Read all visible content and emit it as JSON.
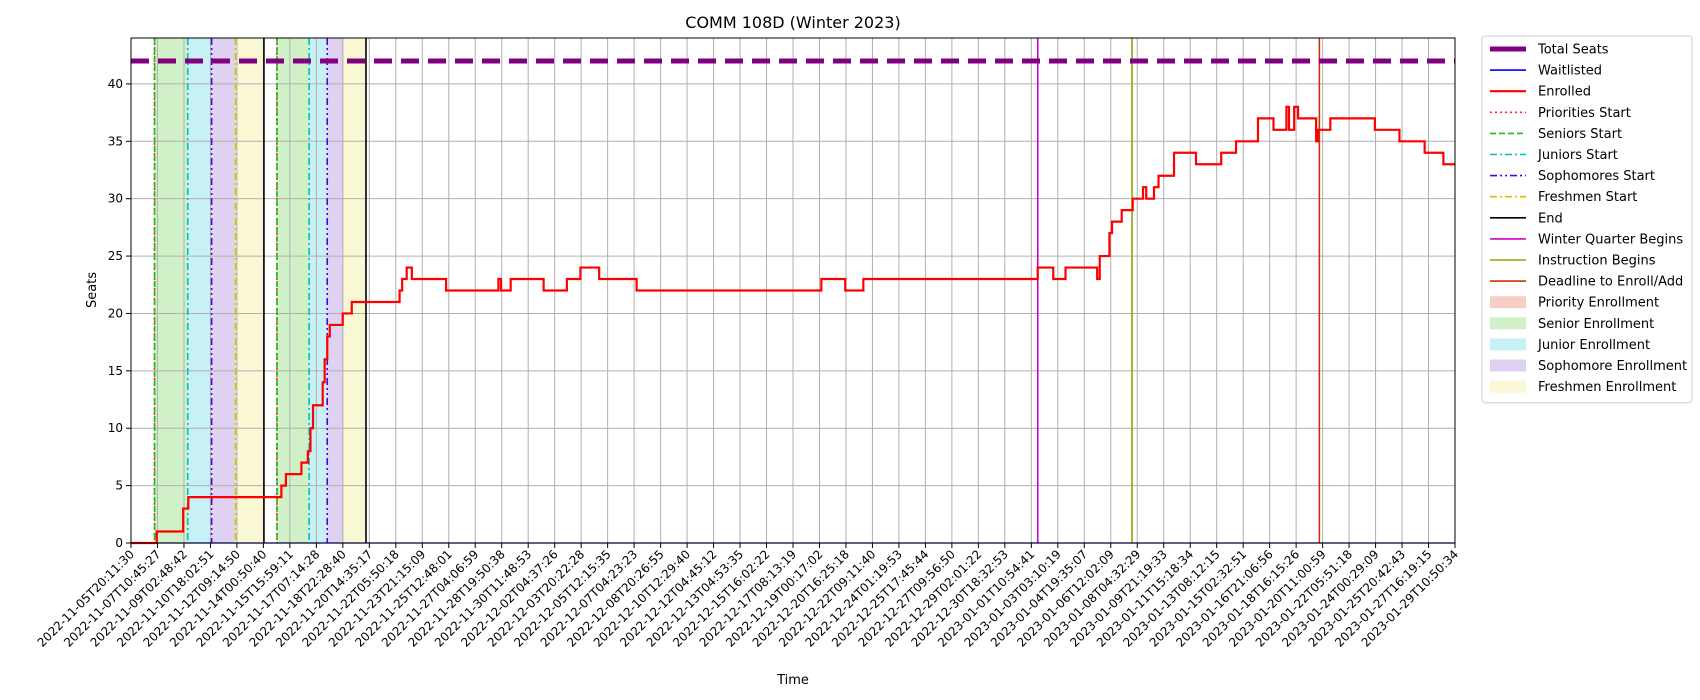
{
  "chart_data": {
    "type": "line",
    "title": "COMM 108D (Winter 2023)",
    "xlabel": "Time",
    "ylabel": "Seats",
    "ylim": [
      0,
      44
    ],
    "yticks": [
      0,
      5,
      10,
      15,
      20,
      25,
      30,
      35,
      40
    ],
    "grid": true,
    "legend_position": "outside-right",
    "x_start": "2022-11-05T20:11:30",
    "x_end": "2023-01-30T06:00:00",
    "xtick_labels": [
      "2022-11-05T20:11:30",
      "2022-11-07T10:45:27",
      "2022-11-09T02:48:42",
      "2022-11-10T18:02:51",
      "2022-11-12T09:14:50",
      "2022-11-14T00:50:40",
      "2022-11-15T15:59:11",
      "2022-11-17T07:14:28",
      "2022-11-18T22:28:40",
      "2022-11-20T14:35:17",
      "2022-11-22T05:50:18",
      "2022-11-23T21:15:09",
      "2022-11-25T12:48:01",
      "2022-11-27T04:06:59",
      "2022-11-28T19:50:38",
      "2022-11-30T11:48:53",
      "2022-12-02T04:37:26",
      "2022-12-03T20:22:28",
      "2022-12-05T12:15:35",
      "2022-12-07T04:23:23",
      "2022-12-08T20:26:55",
      "2022-12-10T12:29:40",
      "2022-12-12T04:45:12",
      "2022-12-13T04:53:35",
      "2022-12-15T16:02:22",
      "2022-12-17T08:13:19",
      "2022-12-19T00:17:02",
      "2022-12-20T16:25:18",
      "2022-12-22T09:11:40",
      "2022-12-24T01:19:53",
      "2022-12-25T17:45:44",
      "2022-12-27T09:56:50",
      "2022-12-29T02:01:22",
      "2022-12-30T18:32:53",
      "2023-01-01T10:54:41",
      "2023-01-03T03:10:19",
      "2023-01-04T19:35:07",
      "2023-01-06T12:02:09",
      "2023-01-08T04:32:29",
      "2023-01-09T21:19:33",
      "2023-01-11T15:18:34",
      "2023-01-13T08:12:15",
      "2023-01-15T02:32:51",
      "2023-01-16T21:06:56",
      "2023-01-18T16:15:26",
      "2023-01-20T11:00:59",
      "2023-01-22T05:51:18",
      "2023-01-24T00:29:09",
      "2023-01-25T20:42:43",
      "2023-01-27T16:19:15",
      "2023-01-29T10:50:34"
    ],
    "series": [
      {
        "name": "Total Seats",
        "color": "#800080",
        "style": "thick-dashed",
        "points": [
          [
            "2022-11-05T20:11:30",
            42
          ],
          [
            "2023-01-30T06:00:00",
            42
          ]
        ]
      },
      {
        "name": "Waitlisted",
        "color": "#0000ff",
        "style": "solid-thin",
        "points": [
          [
            "2022-11-05T20:11:30",
            0
          ],
          [
            "2023-01-30T06:00:00",
            0
          ]
        ]
      },
      {
        "name": "Enrolled",
        "color": "#ff0000",
        "style": "step",
        "points": [
          [
            "2022-11-05T20:11:30",
            0
          ],
          [
            "2022-11-07T12:00:00",
            1
          ],
          [
            "2022-11-09T05:00:00",
            3
          ],
          [
            "2022-11-09T13:00:00",
            4
          ],
          [
            "2022-11-15T13:00:00",
            5
          ],
          [
            "2022-11-15T20:00:00",
            6
          ],
          [
            "2022-11-16T20:00:00",
            7
          ],
          [
            "2022-11-17T06:00:00",
            8
          ],
          [
            "2022-11-17T10:00:00",
            10
          ],
          [
            "2022-11-17T14:00:00",
            12
          ],
          [
            "2022-11-18T05:00:00",
            14
          ],
          [
            "2022-11-18T08:00:00",
            16
          ],
          [
            "2022-11-18T12:00:00",
            18
          ],
          [
            "2022-11-18T16:00:00",
            19
          ],
          [
            "2022-11-19T12:00:00",
            20
          ],
          [
            "2022-11-20T02:00:00",
            21
          ],
          [
            "2022-11-23T04:00:00",
            22
          ],
          [
            "2022-11-23T08:00:00",
            23
          ],
          [
            "2022-11-23T15:00:00",
            24
          ],
          [
            "2022-11-23T23:00:00",
            23
          ],
          [
            "2022-11-26T04:00:00",
            22
          ],
          [
            "2022-11-29T13:00:00",
            23
          ],
          [
            "2022-11-29T17:00:00",
            22
          ],
          [
            "2022-11-30T08:00:00",
            23
          ],
          [
            "2022-12-02T11:00:00",
            22
          ],
          [
            "2022-12-03T23:00:00",
            23
          ],
          [
            "2022-12-04T20:00:00",
            24
          ],
          [
            "2022-12-06T01:00:00",
            23
          ],
          [
            "2022-12-08T11:00:00",
            22
          ],
          [
            "2022-12-20T09:00:00",
            23
          ],
          [
            "2022-12-21T22:00:00",
            22
          ],
          [
            "2022-12-23T02:00:00",
            23
          ],
          [
            "2023-01-03T08:00:00",
            24
          ],
          [
            "2023-01-04T08:00:00",
            23
          ],
          [
            "2023-01-05T03:00:00",
            24
          ],
          [
            "2023-01-07T04:00:00",
            23
          ],
          [
            "2023-01-07T08:00:00",
            25
          ],
          [
            "2023-01-07T23:00:00",
            27
          ],
          [
            "2023-01-08T03:00:00",
            28
          ],
          [
            "2023-01-08T18:00:00",
            29
          ],
          [
            "2023-01-09T11:00:00",
            30
          ],
          [
            "2023-01-10T03:00:00",
            31
          ],
          [
            "2023-01-10T08:00:00",
            30
          ],
          [
            "2023-01-10T20:00:00",
            31
          ],
          [
            "2023-01-11T03:00:00",
            32
          ],
          [
            "2023-01-12T03:00:00",
            34
          ],
          [
            "2023-01-13T13:00:00",
            33
          ],
          [
            "2023-01-15T04:00:00",
            34
          ],
          [
            "2023-01-16T03:00:00",
            35
          ],
          [
            "2023-01-17T13:00:00",
            37
          ],
          [
            "2023-01-18T13:00:00",
            36
          ],
          [
            "2023-01-19T09:00:00",
            38
          ],
          [
            "2023-01-19T13:00:00",
            36
          ],
          [
            "2023-01-19T21:00:00",
            38
          ],
          [
            "2023-01-20T03:00:00",
            37
          ],
          [
            "2023-01-21T07:00:00",
            35
          ],
          [
            "2023-01-21T10:00:00",
            36
          ],
          [
            "2023-01-22T05:00:00",
            37
          ],
          [
            "2023-01-25T02:00:00",
            36
          ],
          [
            "2023-01-26T16:00:00",
            35
          ],
          [
            "2023-01-28T07:00:00",
            34
          ],
          [
            "2023-01-29T12:00:00",
            33
          ],
          [
            "2023-01-30T06:00:00",
            33
          ]
        ]
      }
    ],
    "vertical_markers": [
      {
        "label": "Priorities Start",
        "time": "2022-11-07T08:30:00",
        "color": "#ff2a2a",
        "dash": "dotted"
      },
      {
        "label": "Seniors Start",
        "time": "2022-11-07T08:45:00",
        "color": "#22bb22",
        "dash": "dashed"
      },
      {
        "label": "Juniors Start",
        "time": "2022-11-09T12:00:00",
        "color": "#00bfbf",
        "dash": "dashdot"
      },
      {
        "label": "Sophomores Start",
        "time": "2022-11-11T01:00:00",
        "color": "#5500dd",
        "dash": "dashdotdot"
      },
      {
        "label": "Freshmen Start",
        "time": "2022-11-12T14:00:00",
        "color": "#e0c000",
        "dash": "dashdot"
      },
      {
        "label": "End",
        "time": "2022-11-14T10:00:00",
        "color": "#000000",
        "dash": "solid"
      },
      {
        "label": "Priorities Start",
        "time": "2022-11-15T06:00:00",
        "color": "#ff2a2a",
        "dash": "dotted"
      },
      {
        "label": "Seniors Start",
        "time": "2022-11-15T06:15:00",
        "color": "#22bb22",
        "dash": "dashed"
      },
      {
        "label": "Juniors Start",
        "time": "2022-11-17T08:00:00",
        "color": "#00bfbf",
        "dash": "dashdot"
      },
      {
        "label": "Sophomores Start",
        "time": "2022-11-18T12:00:00",
        "color": "#5500dd",
        "dash": "dashdotdot"
      },
      {
        "label": "End",
        "time": "2022-11-21T00:00:00",
        "color": "#000000",
        "dash": "solid"
      },
      {
        "label": "Winter Quarter Begins",
        "time": "2023-01-03T08:00:00",
        "color": "#cc00cc",
        "dash": "solid"
      },
      {
        "label": "Instruction Begins",
        "time": "2023-01-09T10:00:00",
        "color": "#88aa00",
        "dash": "solid"
      },
      {
        "label": "Deadline to Enroll/Add",
        "time": "2023-01-21T12:00:00",
        "color": "#cc3300",
        "dash": "solid"
      }
    ],
    "shaded_periods": [
      {
        "label": "Priority Enrollment",
        "start": "2022-11-07T08:30:00",
        "end": "2022-11-07T08:45:00",
        "color": "#f4c6b8"
      },
      {
        "label": "Senior Enrollment",
        "start": "2022-11-07T08:45:00",
        "end": "2022-11-09T12:00:00",
        "color": "#c8efbe"
      },
      {
        "label": "Junior Enrollment",
        "start": "2022-11-09T12:00:00",
        "end": "2022-11-11T01:00:00",
        "color": "#bdeef2"
      },
      {
        "label": "Sophomore Enrollment",
        "start": "2022-11-11T01:00:00",
        "end": "2022-11-12T14:00:00",
        "color": "#d9c9f0"
      },
      {
        "label": "Freshmen Enrollment",
        "start": "2022-11-12T14:00:00",
        "end": "2022-11-14T10:00:00",
        "color": "#f8f6cc"
      },
      {
        "label": "Priority Enrollment",
        "start": "2022-11-15T06:00:00",
        "end": "2022-11-15T06:15:00",
        "color": "#f4c6b8"
      },
      {
        "label": "Senior Enrollment",
        "start": "2022-11-15T06:15:00",
        "end": "2022-11-17T08:00:00",
        "color": "#c8efbe"
      },
      {
        "label": "Junior Enrollment",
        "start": "2022-11-17T08:00:00",
        "end": "2022-11-18T12:00:00",
        "color": "#bdeef2"
      },
      {
        "label": "Sophomore Enrollment",
        "start": "2022-11-18T12:00:00",
        "end": "2022-11-19T13:00:00",
        "color": "#d9c9f0"
      },
      {
        "label": "Freshmen Enrollment",
        "start": "2022-11-19T13:00:00",
        "end": "2022-11-21T00:00:00",
        "color": "#f8f6cc"
      }
    ],
    "legend": [
      {
        "label": "Total Seats",
        "kind": "line",
        "color": "#800080",
        "dash": "thick"
      },
      {
        "label": "Waitlisted",
        "kind": "line",
        "color": "#0000ff",
        "dash": "solid"
      },
      {
        "label": "Enrolled",
        "kind": "line",
        "color": "#ff0000",
        "dash": "solid-bold"
      },
      {
        "label": "Priorities Start",
        "kind": "line",
        "color": "#ff2a2a",
        "dash": "dotted"
      },
      {
        "label": "Seniors Start",
        "kind": "line",
        "color": "#22bb22",
        "dash": "dashed"
      },
      {
        "label": "Juniors Start",
        "kind": "line",
        "color": "#00bfbf",
        "dash": "dashdot"
      },
      {
        "label": "Sophomores Start",
        "kind": "line",
        "color": "#5500dd",
        "dash": "dashdotdot"
      },
      {
        "label": "Freshmen Start",
        "kind": "line",
        "color": "#e0c000",
        "dash": "dashdot"
      },
      {
        "label": "End",
        "kind": "line",
        "color": "#000000",
        "dash": "solid"
      },
      {
        "label": "Winter Quarter Begins",
        "kind": "line",
        "color": "#cc00cc",
        "dash": "solid"
      },
      {
        "label": "Instruction Begins",
        "kind": "line",
        "color": "#88aa00",
        "dash": "solid"
      },
      {
        "label": "Deadline to Enroll/Add",
        "kind": "line",
        "color": "#cc3300",
        "dash": "solid"
      },
      {
        "label": "Priority Enrollment",
        "kind": "patch",
        "color": "#f4c6b8"
      },
      {
        "label": "Senior Enrollment",
        "kind": "patch",
        "color": "#c8efbe"
      },
      {
        "label": "Junior Enrollment",
        "kind": "patch",
        "color": "#bdeef2"
      },
      {
        "label": "Sophomore Enrollment",
        "kind": "patch",
        "color": "#d9c9f0"
      },
      {
        "label": "Freshmen Enrollment",
        "kind": "patch",
        "color": "#f8f6cc"
      }
    ]
  }
}
